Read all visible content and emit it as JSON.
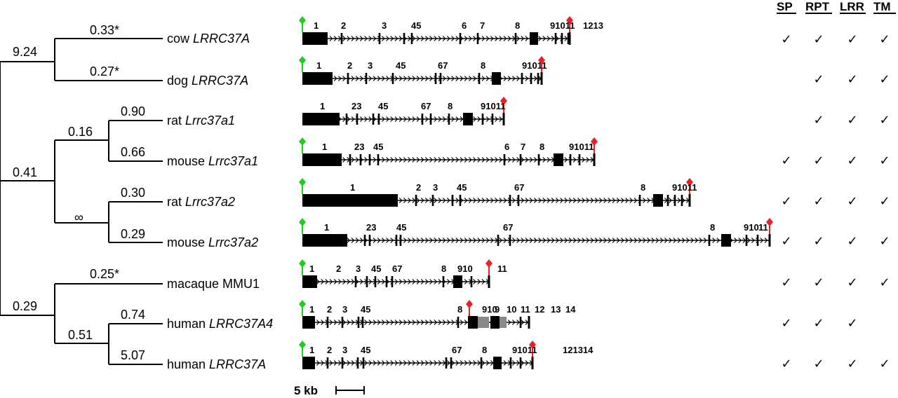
{
  "tree": {
    "branch_values": [
      "9.24",
      "0.33*",
      "0.27*",
      "0.41",
      "0.16",
      "0.90",
      "0.66",
      "∞",
      "0.30",
      "0.29",
      "0.29",
      "0.25*",
      "0.51",
      "0.74",
      "5.07"
    ]
  },
  "genes": [
    {
      "prefix": "cow ",
      "name": "LRRC37A",
      "exon_labels": [
        "1",
        "2",
        "3",
        "45",
        "6",
        "7",
        "8",
        "91011",
        "1213"
      ],
      "green": true,
      "checks": [
        true,
        true,
        true,
        true
      ]
    },
    {
      "prefix": "dog ",
      "name": "LRRC37A",
      "exon_labels": [
        "1",
        "2",
        "3",
        "45",
        "67",
        "8",
        "91011"
      ],
      "green": true,
      "checks": [
        false,
        true,
        true,
        true
      ]
    },
    {
      "prefix": "rat ",
      "name": "Lrrc37a1",
      "exon_labels": [
        "1",
        "23",
        "45",
        "67",
        "8",
        "91011"
      ],
      "green": false,
      "checks": [
        false,
        true,
        true,
        true
      ]
    },
    {
      "prefix": "mouse ",
      "name": "Lrrc37a1",
      "exon_labels": [
        "1",
        "23",
        "45",
        "6",
        "7",
        "8",
        "91011"
      ],
      "green": true,
      "checks": [
        true,
        true,
        true,
        true
      ]
    },
    {
      "prefix": "rat ",
      "name": "Lrrc37a2",
      "exon_labels": [
        "1",
        "2",
        "3",
        "45",
        "67",
        "8",
        "91011"
      ],
      "green": true,
      "checks": [
        true,
        true,
        true,
        true
      ]
    },
    {
      "prefix": "mouse ",
      "name": "Lrrc37a2",
      "exon_labels": [
        "1",
        "23",
        "45",
        "67",
        "8",
        "910",
        "11"
      ],
      "green": true,
      "checks": [
        true,
        true,
        true,
        true
      ]
    },
    {
      "prefix": "macaque MMU1",
      "name": "",
      "exon_labels": [
        "1",
        "2",
        "3",
        "45",
        "67",
        "8",
        "910",
        "11"
      ],
      "green": true,
      "checks": [
        true,
        true,
        true,
        true
      ]
    },
    {
      "prefix": "human ",
      "name": "LRRC37A4",
      "exon_labels": [
        "1",
        "2",
        "3",
        "45",
        "8",
        "910",
        "9",
        "10",
        "11",
        "12",
        "13",
        "14"
      ],
      "green": true,
      "checks": [
        true,
        true,
        true,
        false
      ]
    },
    {
      "prefix": "human ",
      "name": "LRRC37A",
      "exon_labels": [
        "1",
        "2",
        "3",
        "45",
        "67",
        "8",
        "91011",
        "121314"
      ],
      "green": true,
      "checks": [
        true,
        true,
        true,
        true
      ]
    }
  ],
  "columns": [
    "SP",
    "RPT",
    "LRR",
    "TM"
  ],
  "check_glyph": "✓",
  "scale_label": "5 kb",
  "colors": {
    "start_marker": "#22cc22",
    "stop_marker": "#e8202a",
    "exon": "#000000",
    "partial_exon": "#888888"
  }
}
